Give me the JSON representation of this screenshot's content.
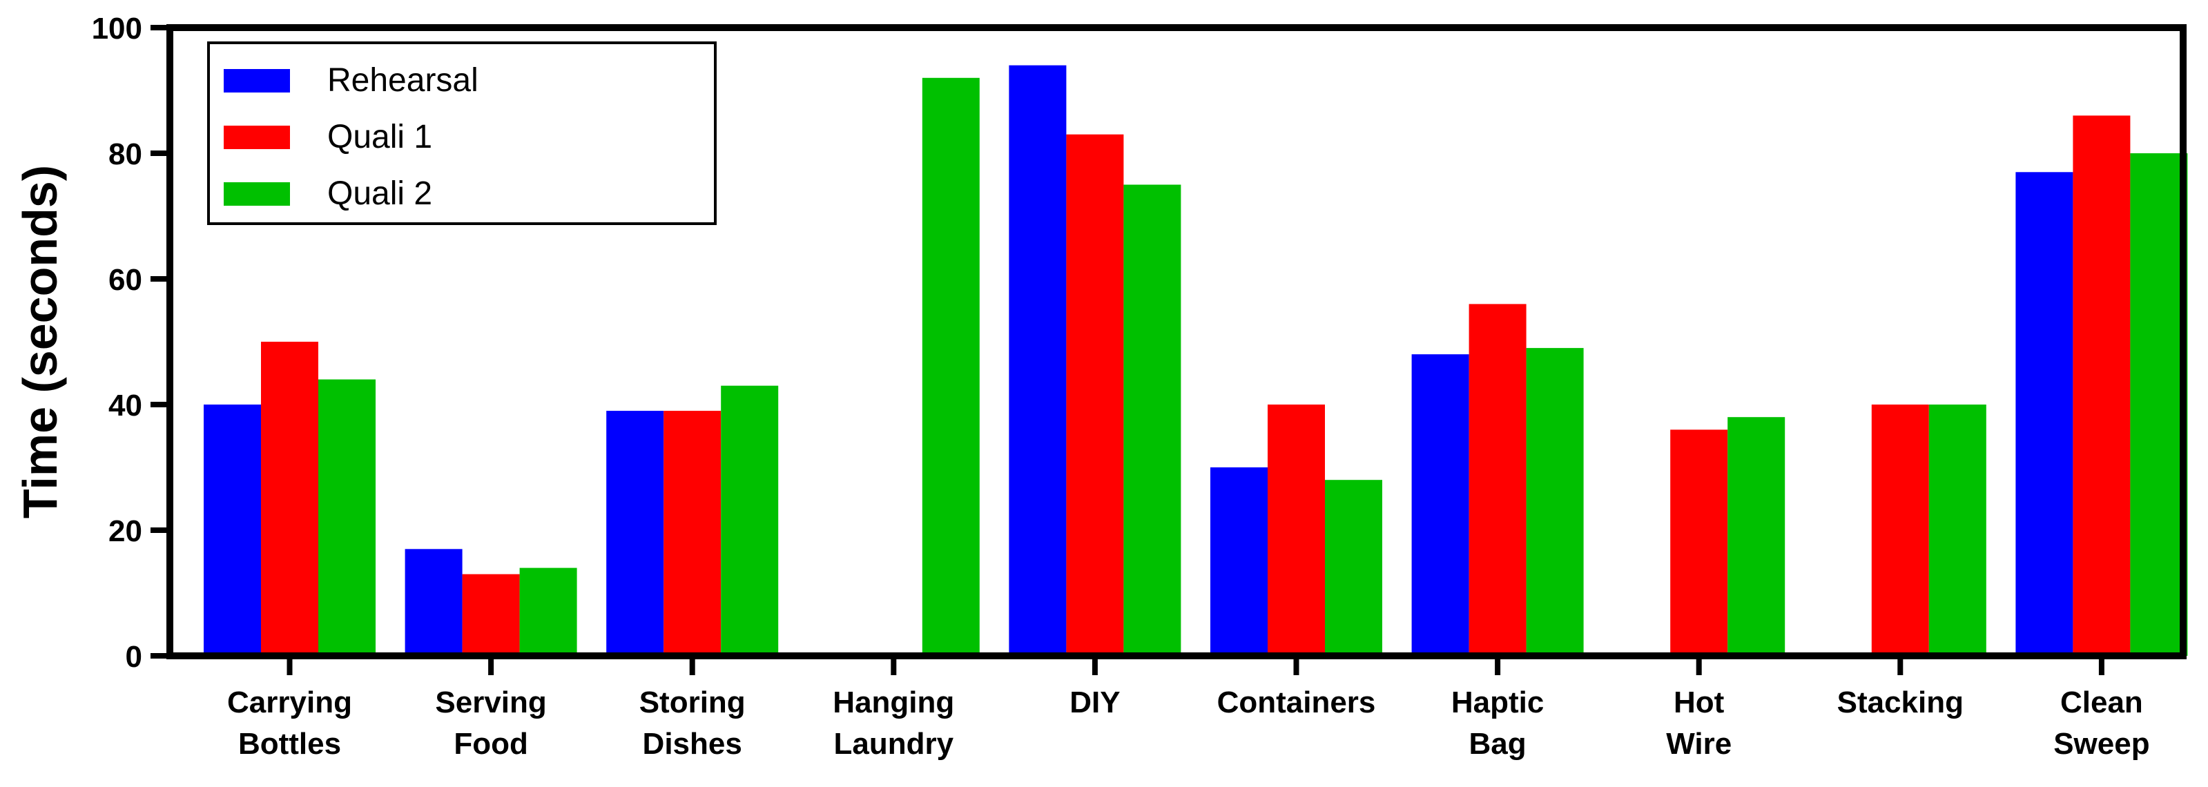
{
  "chart_data": {
    "type": "bar",
    "title": "",
    "xlabel": "",
    "ylabel": "Time (seconds)",
    "ylim": [
      0,
      100
    ],
    "yticks": [
      0,
      20,
      40,
      60,
      80,
      100
    ],
    "categories": [
      [
        "Carrying",
        "Bottles"
      ],
      [
        "Serving",
        "Food"
      ],
      [
        "Storing",
        "Dishes"
      ],
      [
        "Hanging",
        "Laundry"
      ],
      [
        "DIY"
      ],
      [
        "Containers"
      ],
      [
        "Haptic",
        "Bag"
      ],
      [
        "Hot",
        "Wire"
      ],
      [
        "Stacking"
      ],
      [
        "Clean",
        "Sweep"
      ]
    ],
    "series": [
      {
        "name": "Rehearsal",
        "color": "#0000ff",
        "values": [
          40,
          17,
          39,
          null,
          94,
          30,
          48,
          null,
          null,
          77
        ]
      },
      {
        "name": "Quali 1",
        "color": "#ff0000",
        "values": [
          50,
          13,
          39,
          null,
          83,
          40,
          56,
          36,
          40,
          86
        ]
      },
      {
        "name": "Quali 2",
        "color": "#00c000",
        "values": [
          44,
          14,
          43,
          92,
          75,
          28,
          49,
          38,
          40,
          80
        ]
      }
    ],
    "legend_position": "top-left",
    "grid": false
  }
}
